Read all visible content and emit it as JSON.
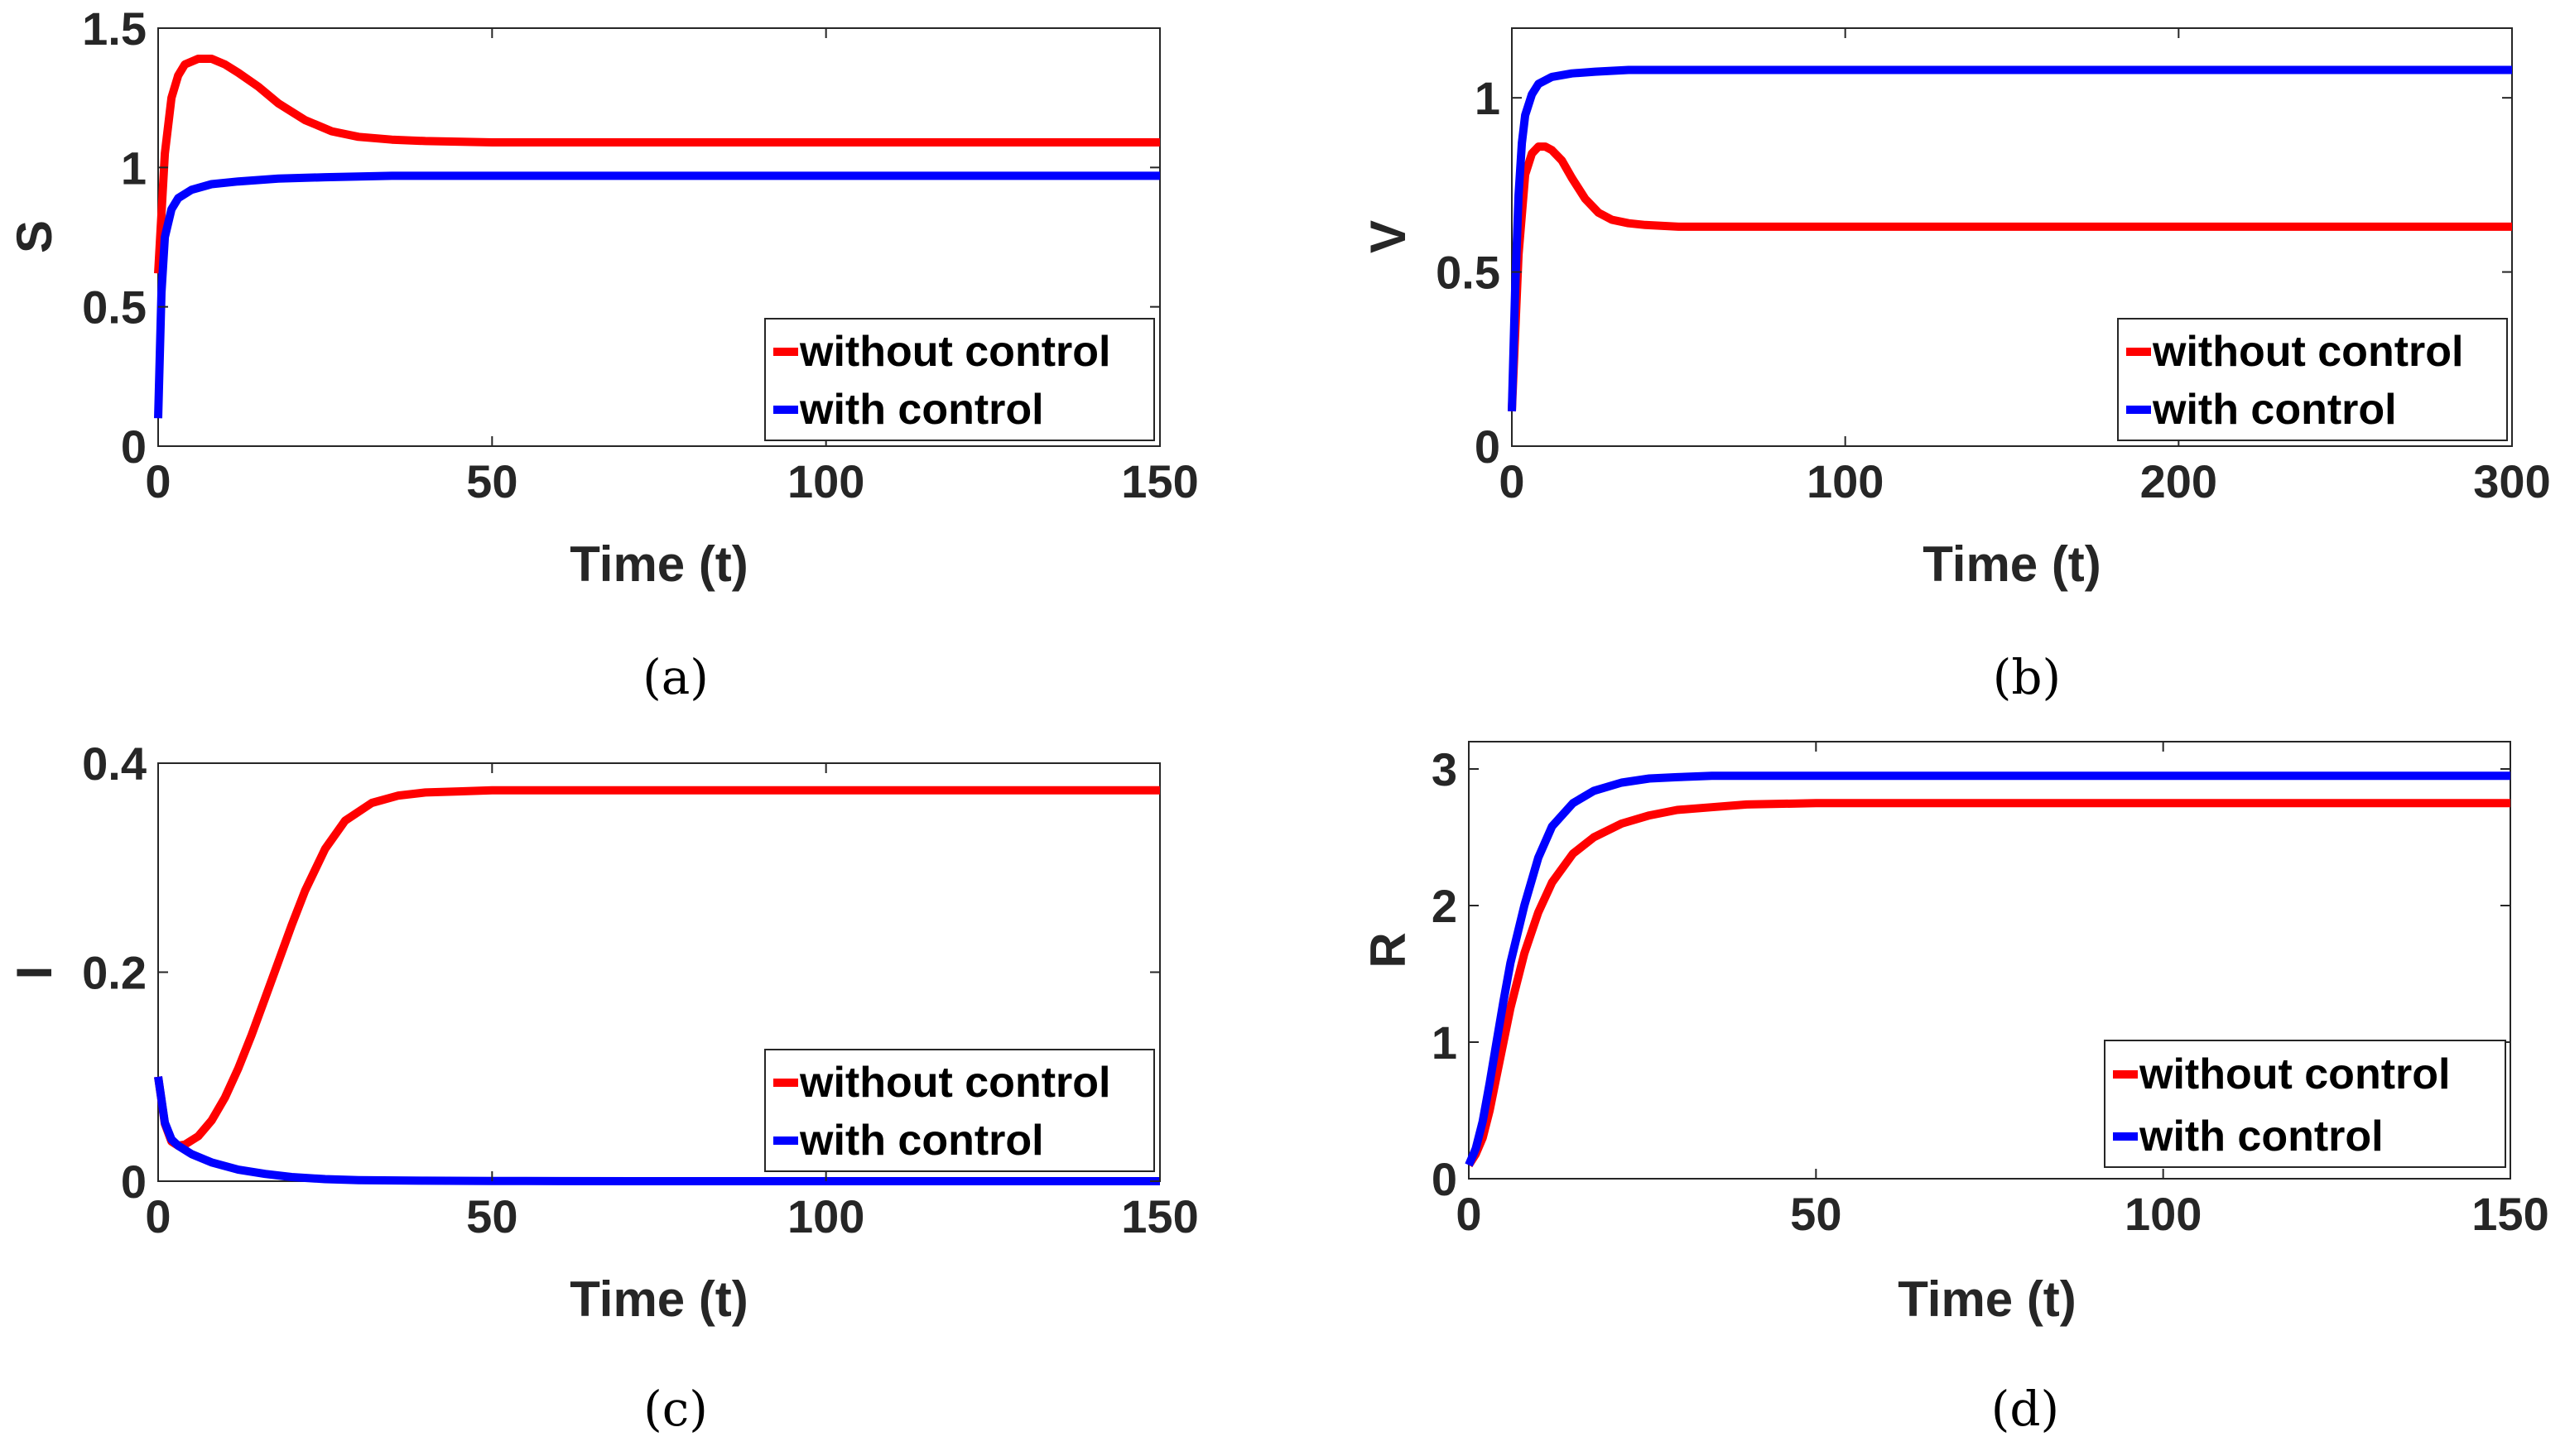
{
  "colors": {
    "without_control": "#ff0000",
    "with_control": "#0000ff",
    "axis": "#262626"
  },
  "chart_data": [
    {
      "type": "line",
      "panel": "a",
      "caption": "(a)",
      "xlabel": "Time (t)",
      "ylabel": "S",
      "xlim": [
        0,
        150
      ],
      "ylim": [
        0,
        1.5
      ],
      "xticks": [
        0,
        50,
        100,
        150
      ],
      "xtick_labels": [
        "0",
        "50",
        "100",
        "150"
      ],
      "yticks": [
        0,
        0.5,
        1,
        1.5
      ],
      "ytick_labels": [
        "0",
        "0.5",
        "1",
        "1.5"
      ],
      "legend_position": "bottom-right",
      "series": [
        {
          "name": "without control",
          "color": "#ff0000",
          "x": [
            0,
            1,
            2,
            3,
            4,
            6,
            8,
            10,
            12,
            15,
            18,
            22,
            26,
            30,
            35,
            40,
            50,
            60,
            80,
            100,
            150
          ],
          "y": [
            0.62,
            1.05,
            1.25,
            1.33,
            1.37,
            1.39,
            1.39,
            1.37,
            1.34,
            1.29,
            1.23,
            1.17,
            1.13,
            1.11,
            1.1,
            1.095,
            1.09,
            1.09,
            1.09,
            1.09,
            1.09
          ]
        },
        {
          "name": "with control",
          "color": "#0000ff",
          "x": [
            0,
            0.5,
            1,
            2,
            3,
            5,
            8,
            12,
            18,
            25,
            35,
            50,
            80,
            100,
            150
          ],
          "y": [
            0.1,
            0.55,
            0.75,
            0.85,
            0.89,
            0.92,
            0.94,
            0.95,
            0.96,
            0.965,
            0.97,
            0.97,
            0.97,
            0.97,
            0.97
          ]
        }
      ]
    },
    {
      "type": "line",
      "panel": "b",
      "caption": "(b)",
      "xlabel": "Time (t)",
      "ylabel": "V",
      "xlim": [
        0,
        300
      ],
      "ylim": [
        0,
        1.2
      ],
      "xticks": [
        0,
        100,
        200,
        300
      ],
      "xtick_labels": [
        "0",
        "100",
        "200",
        "300"
      ],
      "yticks": [
        0,
        0.5,
        1
      ],
      "ytick_labels": [
        "0",
        "0.5",
        "1"
      ],
      "legend_position": "bottom-right",
      "series": [
        {
          "name": "without control",
          "color": "#ff0000",
          "x": [
            0,
            2,
            4,
            6,
            8,
            10,
            12,
            15,
            18,
            22,
            26,
            30,
            35,
            40,
            50,
            60,
            100,
            300
          ],
          "y": [
            0.1,
            0.55,
            0.78,
            0.84,
            0.86,
            0.86,
            0.85,
            0.82,
            0.77,
            0.71,
            0.67,
            0.65,
            0.64,
            0.635,
            0.63,
            0.63,
            0.63,
            0.63
          ]
        },
        {
          "name": "with control",
          "color": "#0000ff",
          "x": [
            0,
            1,
            2,
            3,
            4,
            6,
            8,
            12,
            18,
            25,
            35,
            50,
            100,
            300
          ],
          "y": [
            0.1,
            0.45,
            0.72,
            0.87,
            0.95,
            1.01,
            1.04,
            1.06,
            1.07,
            1.075,
            1.08,
            1.08,
            1.08,
            1.08
          ]
        }
      ]
    },
    {
      "type": "line",
      "panel": "c",
      "caption": "(c)",
      "xlabel": "Time (t)",
      "ylabel": "I",
      "xlim": [
        0,
        150
      ],
      "ylim": [
        0,
        0.4
      ],
      "xticks": [
        0,
        50,
        100,
        150
      ],
      "xtick_labels": [
        "0",
        "50",
        "100",
        "150"
      ],
      "yticks": [
        0,
        0.2,
        0.4
      ],
      "ytick_labels": [
        "0",
        "0.2",
        "0.4"
      ],
      "legend_position": "bottom-right",
      "series": [
        {
          "name": "without control",
          "color": "#ff0000",
          "x": [
            0,
            1,
            2,
            3,
            4,
            6,
            8,
            10,
            12,
            14,
            16,
            18,
            20,
            22,
            25,
            28,
            32,
            36,
            40,
            45,
            50,
            60,
            80,
            100,
            150
          ],
          "y": [
            0.1,
            0.055,
            0.038,
            0.034,
            0.035,
            0.043,
            0.058,
            0.08,
            0.108,
            0.14,
            0.175,
            0.21,
            0.245,
            0.278,
            0.318,
            0.345,
            0.362,
            0.369,
            0.372,
            0.373,
            0.374,
            0.374,
            0.374,
            0.374,
            0.374
          ]
        },
        {
          "name": "with control",
          "color": "#0000ff",
          "x": [
            0,
            1,
            2,
            3,
            5,
            8,
            12,
            16,
            20,
            25,
            30,
            40,
            50,
            60,
            80,
            100,
            150
          ],
          "y": [
            0.1,
            0.056,
            0.04,
            0.034,
            0.026,
            0.018,
            0.011,
            0.007,
            0.004,
            0.002,
            0.001,
            0.0005,
            0.0002,
            0.0001,
            0,
            0,
            0
          ]
        }
      ]
    },
    {
      "type": "line",
      "panel": "d",
      "caption": "(d)",
      "xlabel": "Time (t)",
      "ylabel": "R",
      "xlim": [
        0,
        150
      ],
      "ylim": [
        0,
        3.2
      ],
      "xticks": [
        0,
        50,
        100,
        150
      ],
      "xtick_labels": [
        "0",
        "50",
        "100",
        "150"
      ],
      "yticks": [
        0,
        1,
        2,
        3
      ],
      "ytick_labels": [
        "0",
        "1",
        "2",
        "3"
      ],
      "legend_position": "bottom-right",
      "series": [
        {
          "name": "without control",
          "color": "#ff0000",
          "x": [
            0,
            1,
            2,
            3,
            4,
            5,
            6,
            8,
            10,
            12,
            15,
            18,
            22,
            26,
            30,
            35,
            40,
            50,
            60,
            80,
            100,
            150
          ],
          "y": [
            0.1,
            0.18,
            0.3,
            0.5,
            0.75,
            1.0,
            1.25,
            1.65,
            1.95,
            2.17,
            2.38,
            2.5,
            2.6,
            2.66,
            2.7,
            2.72,
            2.74,
            2.75,
            2.75,
            2.75,
            2.75,
            2.75
          ]
        },
        {
          "name": "with control",
          "color": "#0000ff",
          "x": [
            0,
            1,
            2,
            3,
            4,
            5,
            6,
            8,
            10,
            12,
            15,
            18,
            22,
            26,
            30,
            35,
            40,
            50,
            60,
            80,
            100,
            150
          ],
          "y": [
            0.1,
            0.22,
            0.42,
            0.7,
            1.0,
            1.3,
            1.58,
            2.0,
            2.35,
            2.58,
            2.75,
            2.84,
            2.9,
            2.93,
            2.94,
            2.95,
            2.95,
            2.95,
            2.95,
            2.95,
            2.95,
            2.95
          ]
        }
      ]
    }
  ]
}
